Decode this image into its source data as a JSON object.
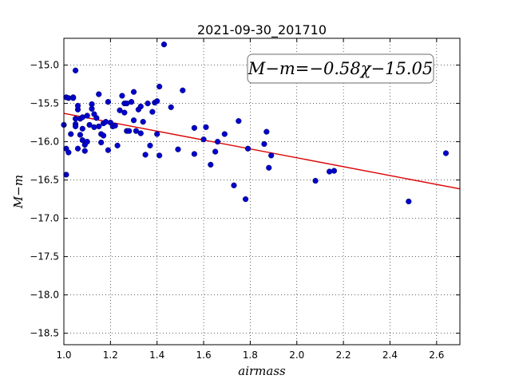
{
  "chart_data": {
    "type": "scatter",
    "title": "2021-09-30_201710",
    "xlabel": "airmass",
    "ylabel": "M−m",
    "xlim": [
      1.0,
      2.7
    ],
    "ylim": [
      -18.65,
      -14.65
    ],
    "xticks": [
      1.0,
      1.2,
      1.4,
      1.6,
      1.8,
      2.0,
      2.2,
      2.4,
      2.6
    ],
    "xtick_labels": [
      "1.0",
      "1.2",
      "1.4",
      "1.6",
      "1.8",
      "2.0",
      "2.2",
      "2.4",
      "2.6"
    ],
    "yticks": [
      -15.0,
      -15.5,
      -16.0,
      -16.5,
      -17.0,
      -17.5,
      -18.0,
      -18.5
    ],
    "ytick_labels": [
      "−15.0",
      "−15.5",
      "−16.0",
      "−16.5",
      "−17.0",
      "−17.5",
      "−18.0",
      "−18.5"
    ],
    "grid": true,
    "point_color": "#0000cc",
    "fit_color": "#dd0000",
    "fit": {
      "slope": -0.58,
      "intercept": -15.05,
      "x_range": [
        1.0,
        2.7
      ]
    },
    "annotation": "M−m=−0.58χ−15.05",
    "x": [
      1.01,
      1.02,
      1.04,
      1.05,
      1.0,
      1.01,
      1.01,
      1.02,
      1.03,
      1.04,
      1.05,
      1.05,
      1.05,
      1.06,
      1.06,
      1.06,
      1.07,
      1.07,
      1.08,
      1.08,
      1.08,
      1.09,
      1.09,
      1.1,
      1.1,
      1.11,
      1.12,
      1.12,
      1.13,
      1.13,
      1.14,
      1.15,
      1.15,
      1.16,
      1.16,
      1.17,
      1.17,
      1.18,
      1.19,
      1.19,
      1.2,
      1.21,
      1.22,
      1.23,
      1.24,
      1.25,
      1.26,
      1.26,
      1.27,
      1.27,
      1.28,
      1.29,
      1.3,
      1.3,
      1.31,
      1.32,
      1.33,
      1.33,
      1.34,
      1.35,
      1.36,
      1.37,
      1.38,
      1.39,
      1.4,
      1.4,
      1.41,
      1.41,
      1.43,
      1.46,
      1.49,
      1.51,
      1.56,
      1.56,
      1.6,
      1.61,
      1.63,
      1.65,
      1.66,
      1.69,
      1.73,
      1.75,
      1.78,
      1.79,
      1.86,
      1.87,
      1.88,
      1.89,
      2.08,
      2.14,
      2.16,
      2.48,
      2.64
    ],
    "y": [
      -15.42,
      -15.43,
      -15.42,
      -15.07,
      -15.78,
      -16.43,
      -16.09,
      -16.14,
      -15.9,
      -15.43,
      -15.7,
      -15.77,
      -15.8,
      -16.09,
      -15.58,
      -15.53,
      -15.7,
      -15.91,
      -15.83,
      -15.98,
      -15.68,
      -16.04,
      -16.12,
      -15.66,
      -16.0,
      -15.78,
      -15.57,
      -15.51,
      -15.64,
      -15.81,
      -15.69,
      -15.38,
      -15.8,
      -15.9,
      -16.01,
      -15.76,
      -15.92,
      -15.74,
      -15.48,
      -16.11,
      -15.75,
      -15.8,
      -15.79,
      -16.05,
      -15.59,
      -15.4,
      -15.62,
      -15.5,
      -15.86,
      -15.5,
      -15.86,
      -15.48,
      -15.35,
      -15.72,
      -15.86,
      -15.58,
      -15.89,
      -15.54,
      -15.74,
      -16.17,
      -15.5,
      -16.05,
      -15.61,
      -15.49,
      -15.9,
      -15.47,
      -15.28,
      -16.18,
      -14.73,
      -15.55,
      -16.1,
      -15.33,
      -16.16,
      -15.82,
      -15.97,
      -15.81,
      -16.3,
      -16.13,
      -16.0,
      -15.9,
      -16.57,
      -15.73,
      -16.75,
      -16.09,
      -16.03,
      -15.87,
      -16.34,
      -16.18,
      -16.51,
      -16.39,
      -16.38,
      -16.78,
      -16.15
    ]
  }
}
